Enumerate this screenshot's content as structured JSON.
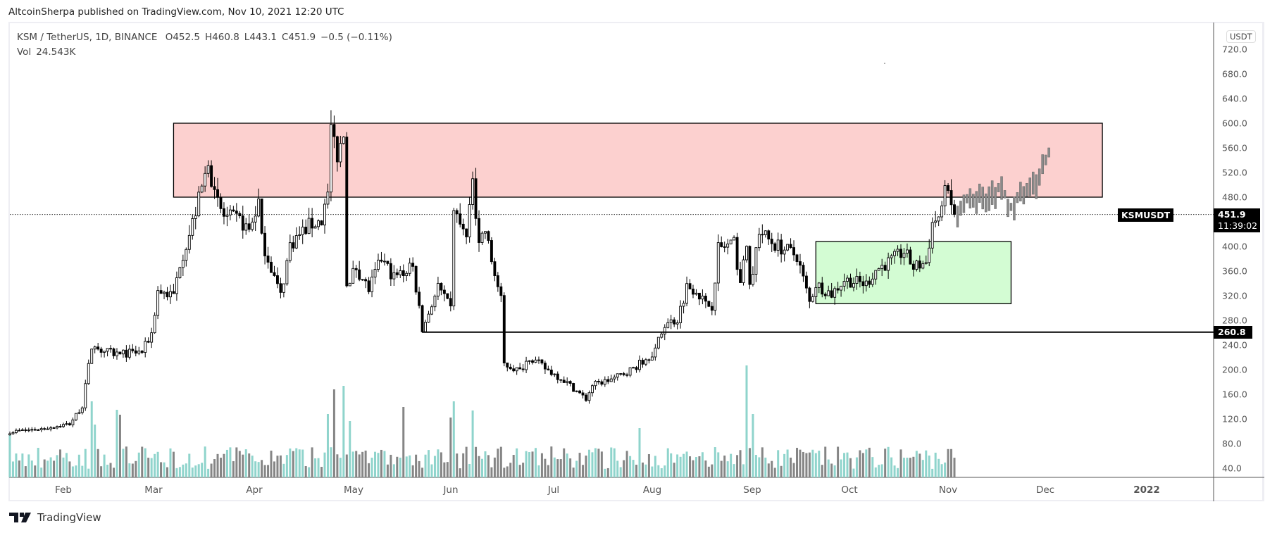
{
  "header": {
    "publisher": "AltcoinSherpa published on TradingView.com, Nov 10, 2021 12:20 UTC"
  },
  "legend": {
    "symbol": "KSM / TetherUS, 1D, BINANCE",
    "open": "O452.5",
    "high": "H460.8",
    "low": "L443.1",
    "close": "C451.9",
    "change": "−0.5 (−0.11%)",
    "vol_label": "Vol",
    "vol_value": "24.543K"
  },
  "price_axis": {
    "currency": "USDT",
    "ticks": [
      "720.0",
      "680.0",
      "640.0",
      "600.0",
      "560.0",
      "520.0",
      "480.0",
      "400.0",
      "360.0",
      "320.0",
      "280.0",
      "240.0",
      "200.0",
      "160.0",
      "120.0",
      "80.0",
      "40.0"
    ]
  },
  "time_axis": {
    "ticks": [
      "Feb",
      "Mar",
      "Apr",
      "May",
      "Jun",
      "Jul",
      "Aug",
      "Sep",
      "Oct",
      "Nov",
      "Dec",
      "2022"
    ]
  },
  "price_tag": {
    "symbol": "KSMUSDT",
    "price": "451.9",
    "countdown": "11:39:02"
  },
  "level_tag": "260.8",
  "footer": {
    "brand": "TradingView"
  },
  "colors": {
    "up_volume": "#8fd4cc",
    "down_volume": "#858585",
    "resistance_zone": "#fcd0cf",
    "support_zone": "#d3fcd3",
    "projection": "#8a8a8a"
  },
  "chart_data": {
    "type": "candlestick",
    "title": "KSM / TetherUS, 1D, BINANCE",
    "ylabel": "USDT",
    "ylim": [
      40,
      720
    ],
    "note": "day index 0 ≈ mid-Jan 2021; closes estimated from the chart, linearly interpolated between keypoints",
    "close_keypoints": [
      [
        0,
        99
      ],
      [
        10,
        104
      ],
      [
        19,
        112
      ],
      [
        23,
        141
      ],
      [
        26,
        237
      ],
      [
        30,
        230
      ],
      [
        34,
        225
      ],
      [
        42,
        229
      ],
      [
        45,
        259
      ],
      [
        47,
        328
      ],
      [
        52,
        320
      ],
      [
        54,
        374
      ],
      [
        57,
        419
      ],
      [
        62,
        514
      ],
      [
        63,
        545
      ],
      [
        65,
        480
      ],
      [
        68,
        449
      ],
      [
        73,
        442
      ],
      [
        76,
        426
      ],
      [
        79,
        472
      ],
      [
        80,
        411
      ],
      [
        83,
        366
      ],
      [
        86,
        320
      ],
      [
        89,
        403
      ],
      [
        92,
        419
      ],
      [
        95,
        434
      ],
      [
        99,
        442
      ],
      [
        101,
        488
      ],
      [
        102,
        594
      ],
      [
        104,
        548
      ],
      [
        106,
        591
      ],
      [
        107,
        339
      ],
      [
        110,
        366
      ],
      [
        114,
        330
      ],
      [
        118,
        380
      ],
      [
        122,
        350
      ],
      [
        128,
        366
      ],
      [
        131,
        263
      ],
      [
        136,
        335
      ],
      [
        140,
        297
      ],
      [
        141,
        457
      ],
      [
        145,
        411
      ],
      [
        147,
        506
      ],
      [
        149,
        411
      ],
      [
        151,
        426
      ],
      [
        153,
        377
      ],
      [
        156,
        312
      ],
      [
        157,
        209
      ],
      [
        162,
        198
      ],
      [
        165,
        221
      ],
      [
        170,
        202
      ],
      [
        176,
        183
      ],
      [
        183,
        152
      ],
      [
        185,
        175
      ],
      [
        192,
        186
      ],
      [
        198,
        202
      ],
      [
        202,
        217
      ],
      [
        205,
        232
      ],
      [
        208,
        274
      ],
      [
        212,
        282
      ],
      [
        215,
        335
      ],
      [
        218,
        331
      ],
      [
        221,
        305
      ],
      [
        223,
        305
      ],
      [
        225,
        397
      ],
      [
        230,
        403
      ],
      [
        232,
        343
      ],
      [
        234,
        397
      ],
      [
        235,
        335
      ],
      [
        238,
        426
      ],
      [
        241,
        411
      ],
      [
        243,
        403
      ],
      [
        250,
        385
      ],
      [
        254,
        309
      ],
      [
        256,
        339
      ],
      [
        261,
        323
      ],
      [
        265,
        346
      ],
      [
        272,
        339
      ],
      [
        275,
        362
      ],
      [
        280,
        377
      ],
      [
        284,
        392
      ],
      [
        287,
        366
      ],
      [
        291,
        374
      ],
      [
        293,
        438
      ],
      [
        296,
        453
      ],
      [
        297,
        511
      ],
      [
        298,
        477
      ],
      [
        300,
        452
      ]
    ],
    "projection_keypoints": [
      [
        301,
        455
      ],
      [
        305,
        470
      ],
      [
        310,
        478
      ],
      [
        315,
        490
      ],
      [
        318,
        462
      ],
      [
        322,
        495
      ],
      [
        326,
        505
      ],
      [
        330,
        540
      ]
    ],
    "volume_spikes": [
      [
        0,
        60
      ],
      [
        26,
        108
      ],
      [
        27,
        75
      ],
      [
        34,
        96
      ],
      [
        35,
        89
      ],
      [
        101,
        90
      ],
      [
        103,
        125
      ],
      [
        106,
        130
      ],
      [
        108,
        80
      ],
      [
        125,
        100
      ],
      [
        140,
        85
      ],
      [
        141,
        108
      ],
      [
        147,
        95
      ],
      [
        200,
        70
      ],
      [
        234,
        159
      ],
      [
        236,
        90
      ]
    ],
    "zones": [
      {
        "name": "resistance",
        "low": 480,
        "high": 600,
        "start_day": 52,
        "end_day": 347
      },
      {
        "name": "support",
        "low": 307,
        "high": 408,
        "start_day": 256,
        "end_day": 318
      }
    ],
    "levels": [
      {
        "price": 260.8,
        "start_day": 131
      }
    ],
    "last_price": 451.9
  }
}
